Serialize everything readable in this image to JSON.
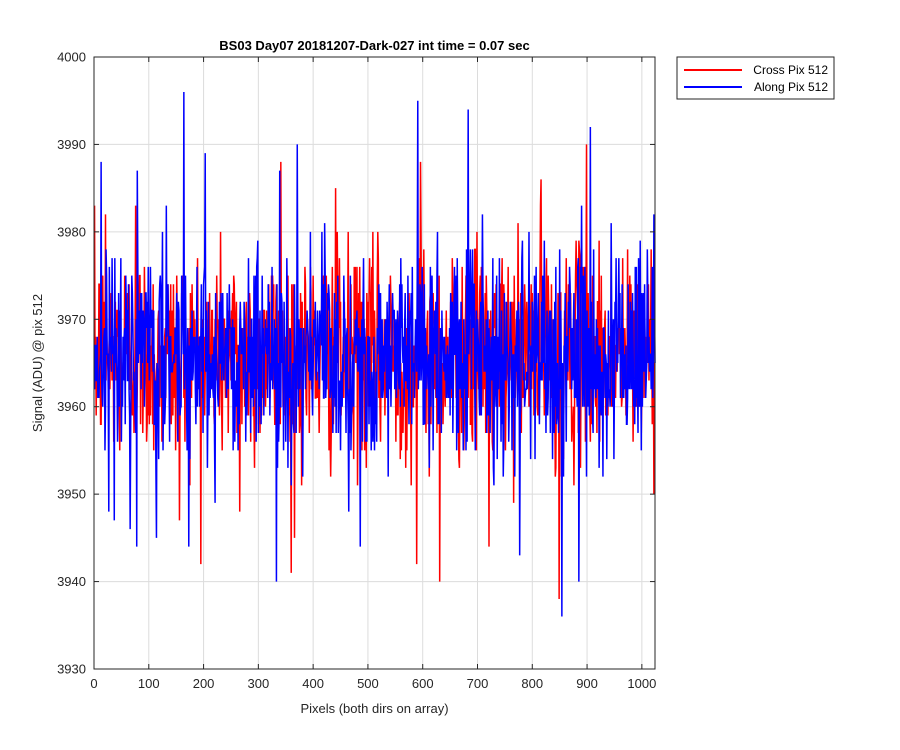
{
  "chart_data": {
    "type": "line",
    "title": "BS03 Day07 20181207-Dark-027 int time = 0.07 sec",
    "xlabel": "Pixels (both dirs on array)",
    "ylabel": "Signal (ADU) @ pix 512",
    "xlim": [
      0,
      1024
    ],
    "ylim": [
      3930,
      4000
    ],
    "xticks": [
      0,
      100,
      200,
      300,
      400,
      500,
      600,
      700,
      800,
      900,
      1000
    ],
    "yticks": [
      3930,
      3940,
      3950,
      3960,
      3970,
      3980,
      3990,
      4000
    ],
    "grid": true,
    "legend_position": "outside-top-right",
    "series": [
      {
        "name": "Cross Pix 512",
        "color": "#ff0000",
        "mean": 3966,
        "noise_std": 6,
        "n_points": 1024,
        "highlights": [
          {
            "x": 340,
            "y": 3988
          },
          {
            "x": 595,
            "y": 3988
          },
          {
            "x": 898,
            "y": 3990
          },
          {
            "x": 630,
            "y": 3940
          },
          {
            "x": 588,
            "y": 3942
          },
          {
            "x": 848,
            "y": 3938
          },
          {
            "x": 20,
            "y": 3982
          },
          {
            "x": 75,
            "y": 3983
          },
          {
            "x": 440,
            "y": 3985
          },
          {
            "x": 815,
            "y": 3986
          },
          {
            "x": 155,
            "y": 3947
          },
          {
            "x": 265,
            "y": 3948
          },
          {
            "x": 365,
            "y": 3945
          },
          {
            "x": 720,
            "y": 3944
          }
        ]
      },
      {
        "name": "Along Pix 512",
        "color": "#0000ff",
        "mean": 3966,
        "noise_std": 6,
        "n_points": 1024,
        "highlights": [
          {
            "x": 163,
            "y": 3996
          },
          {
            "x": 590,
            "y": 3995
          },
          {
            "x": 682,
            "y": 3994
          },
          {
            "x": 905,
            "y": 3992
          },
          {
            "x": 202,
            "y": 3989
          },
          {
            "x": 338,
            "y": 3987
          },
          {
            "x": 370,
            "y": 3990
          },
          {
            "x": 12,
            "y": 3988
          },
          {
            "x": 332,
            "y": 3940
          },
          {
            "x": 853,
            "y": 3936
          },
          {
            "x": 884,
            "y": 3940
          },
          {
            "x": 77,
            "y": 3944
          },
          {
            "x": 485,
            "y": 3944
          },
          {
            "x": 776,
            "y": 3943
          },
          {
            "x": 65,
            "y": 3946
          },
          {
            "x": 113,
            "y": 3945
          }
        ]
      }
    ]
  }
}
